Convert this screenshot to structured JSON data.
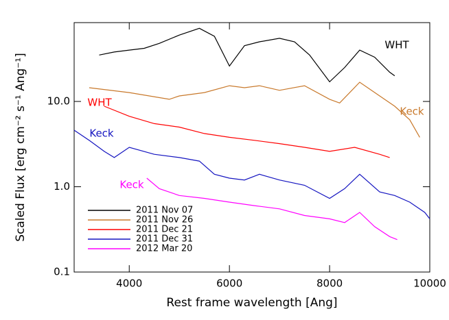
{
  "chart_data": {
    "type": "line",
    "xlabel": "Rest frame wavelength [Ang]",
    "ylabel": "Scaled Flux [erg cm⁻² s⁻¹ Ang⁻¹]",
    "xlim": [
      2900,
      10000
    ],
    "xticks": [
      4000,
      6000,
      8000,
      10000
    ],
    "ylim": [
      0.1,
      84
    ],
    "ylog": true,
    "yticks": [
      0.1,
      {
        "value": 1,
        "label": "1.0"
      },
      {
        "value": 10,
        "label": "10.0"
      }
    ],
    "legend": "lower left",
    "series": [
      {
        "name": "2011 Nov 07",
        "color": "#000000",
        "x": [
          3400,
          3700,
          4000,
          4300,
          4600,
          5000,
          5400,
          5700,
          6000,
          6300,
          6600,
          7000,
          7300,
          7600,
          8000,
          8300,
          8600,
          8900,
          9200,
          9300
        ],
        "values": [
          35,
          38,
          40,
          42,
          48,
          60,
          72,
          58,
          26,
          45,
          50,
          55,
          50,
          35,
          17,
          25,
          40,
          33,
          22,
          20
        ]
      },
      {
        "name": "2011 Nov 26",
        "color": "#c8782a",
        "x": [
          3200,
          4000,
          4800,
          5000,
          5500,
          6000,
          6300,
          6600,
          7000,
          7500,
          8000,
          8200,
          8600,
          9000,
          9300,
          9600,
          9800
        ],
        "values": [
          14.5,
          12.7,
          10.6,
          11.6,
          12.7,
          15.3,
          14.5,
          15.3,
          13.5,
          15.3,
          10.6,
          9.6,
          16.8,
          11.6,
          8.8,
          6.1,
          3.8
        ]
      },
      {
        "name": "2011 Dec 21",
        "color": "#ff0000",
        "x": [
          3500,
          4000,
          4500,
          5000,
          5500,
          6000,
          6500,
          7000,
          7500,
          8000,
          8500,
          9000,
          9200
        ],
        "values": [
          8.8,
          6.7,
          5.5,
          5.0,
          4.2,
          3.8,
          3.5,
          3.2,
          2.9,
          2.6,
          2.9,
          2.4,
          2.2
        ]
      },
      {
        "name": "2011 Dec 31",
        "color": "#1414c0",
        "x": [
          2900,
          3200,
          3500,
          3700,
          4000,
          4500,
          5000,
          5400,
          5700,
          6000,
          6300,
          6600,
          7000,
          7500,
          8000,
          8300,
          8600,
          9000,
          9300,
          9600,
          9900,
          10000
        ],
        "values": [
          4.6,
          3.5,
          2.6,
          2.2,
          2.9,
          2.4,
          2.2,
          2.0,
          1.4,
          1.26,
          1.2,
          1.4,
          1.2,
          1.04,
          0.73,
          0.95,
          1.4,
          0.87,
          0.79,
          0.66,
          0.5,
          0.42
        ]
      },
      {
        "name": "2012 Mar 20",
        "color": "#ff00ff",
        "x": [
          4350,
          4600,
          5000,
          5500,
          6000,
          6500,
          7000,
          7500,
          8000,
          8300,
          8600,
          8900,
          9200,
          9350
        ],
        "values": [
          1.26,
          0.95,
          0.79,
          0.73,
          0.66,
          0.6,
          0.55,
          0.46,
          0.42,
          0.38,
          0.5,
          0.34,
          0.26,
          0.24
        ]
      }
    ],
    "annotations": [
      {
        "text": "WHT",
        "color": "#000000"
      },
      {
        "text": "Keck",
        "color": "#c8782a"
      },
      {
        "text": "WHT",
        "color": "#ff0000"
      },
      {
        "text": "Keck",
        "color": "#1414c0"
      },
      {
        "text": "Keck",
        "color": "#ff00ff"
      }
    ]
  }
}
